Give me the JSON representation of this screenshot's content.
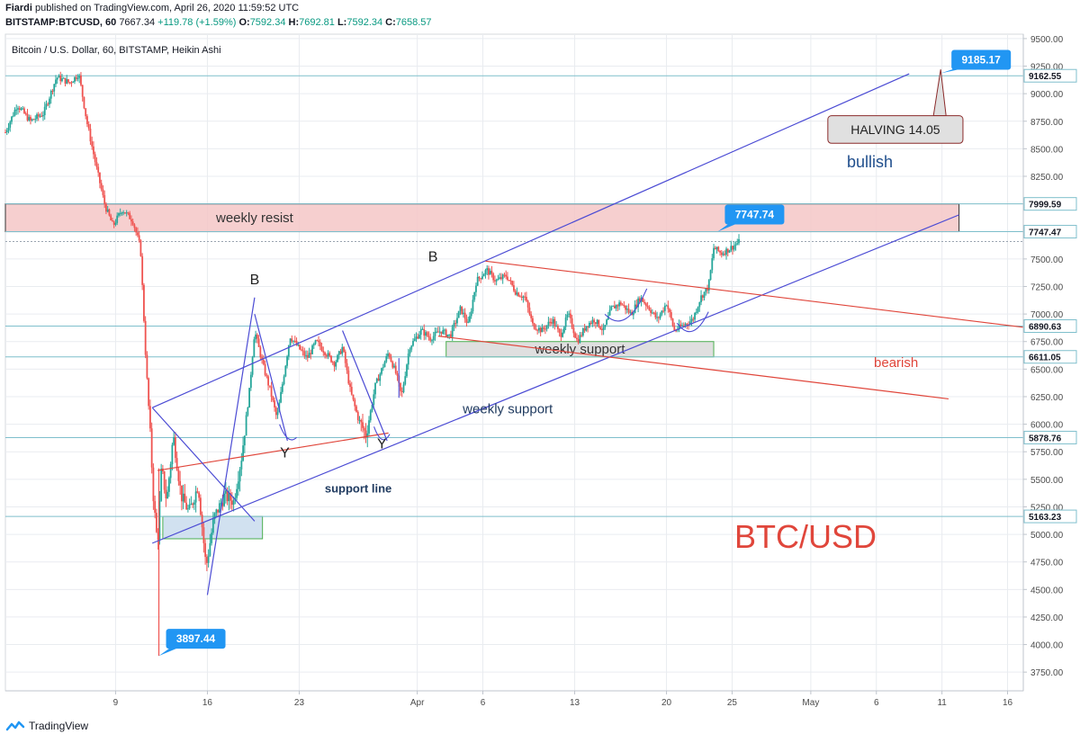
{
  "header": {
    "author": "Fiardi",
    "published": "published on TradingView.com, April 26, 2020 11:59:52 UTC",
    "symbol": "BITSTAMP:BTCUSD, 60",
    "last": "7667.34",
    "change": "+119.78 (+1.59%)",
    "o_label": "O:",
    "o": "7592.34",
    "h_label": "H:",
    "h": "7692.81",
    "l_label": "L:",
    "l": "7592.34",
    "c_label": "C:",
    "c": "7658.57"
  },
  "footer": {
    "brand": "TradingView",
    "logo_icon": "tradingview-logo-icon"
  },
  "chart_data": {
    "type": "candlestick",
    "subtitle": "Bitcoin / U.S. Dollar, 60, BITSTAMP, Heikin Ashi",
    "y_ticks": [
      3750,
      4000,
      4250,
      4500,
      4750,
      5000,
      5250,
      5500,
      5750,
      6000,
      6250,
      6500,
      6750,
      7000,
      7250,
      7500,
      7750,
      8000,
      8250,
      8500,
      8750,
      9000,
      9250,
      9500
    ],
    "y_tick_labels": [
      "3750.00",
      "4000.00",
      "4250.00",
      "4500.00",
      "4750.00",
      "5000.00",
      "5250.00",
      "5500.00",
      "5750.00",
      "6000.00",
      "6250.00",
      "6500.00",
      "6750.00",
      "7000.00",
      "7250.00",
      "7500.00",
      "7750.00",
      "8000.00",
      "8250.00",
      "8500.00",
      "8750.00",
      "9000.00",
      "9250.00",
      "9500.00"
    ],
    "ylim": [
      3580,
      9540
    ],
    "x_ticks": [
      {
        "label": "9",
        "day": 9
      },
      {
        "label": "16",
        "day": 16
      },
      {
        "label": "23",
        "day": 23
      },
      {
        "label": "Apr",
        "day": 32
      },
      {
        "label": "6",
        "day": 37
      },
      {
        "label": "13",
        "day": 44
      },
      {
        "label": "20",
        "day": 51
      },
      {
        "label": "25",
        "day": 56
      },
      {
        "label": "May",
        "day": 62
      },
      {
        "label": "6",
        "day": 67
      },
      {
        "label": "11",
        "day": 72
      },
      {
        "label": "16",
        "day": 77
      }
    ],
    "xlim": [
      0.6,
      78.2
    ],
    "price_levels": [
      {
        "label": "9162.55",
        "value": 9162.55
      },
      {
        "label": "7999.59",
        "value": 7999.59
      },
      {
        "label": "7747.47",
        "value": 7747.47
      },
      {
        "label": "6890.63",
        "value": 6890.63
      },
      {
        "label": "6611.05",
        "value": 6611.05
      },
      {
        "label": "5878.76",
        "value": 5878.76
      },
      {
        "label": "5163.23",
        "value": 5163.23
      }
    ],
    "current_price": 7658.57,
    "price_path": [
      [
        0.6,
        8650
      ],
      [
        1.5,
        8900
      ],
      [
        2.5,
        8750
      ],
      [
        3.5,
        8820
      ],
      [
        4.5,
        9150
      ],
      [
        5.5,
        9100
      ],
      [
        6.2,
        9180
      ],
      [
        6.8,
        8750
      ],
      [
        7.5,
        8350
      ],
      [
        8.2,
        7980
      ],
      [
        8.8,
        7800
      ],
      [
        9.5,
        7950
      ],
      [
        10.3,
        7850
      ],
      [
        10.9,
        7600
      ],
      [
        11.3,
        6600
      ],
      [
        11.6,
        6000
      ],
      [
        11.9,
        5300
      ],
      [
        12.2,
        4900
      ],
      [
        12.5,
        5600
      ],
      [
        12.9,
        5300
      ],
      [
        13.4,
        5900
      ],
      [
        14,
        5350
      ],
      [
        14.6,
        5200
      ],
      [
        15.3,
        5450
      ],
      [
        15.9,
        4700
      ],
      [
        16.5,
        5150
      ],
      [
        17.3,
        5350
      ],
      [
        18,
        5300
      ],
      [
        18.6,
        5700
      ],
      [
        19.2,
        6300
      ],
      [
        19.6,
        6850
      ],
      [
        20.2,
        6550
      ],
      [
        20.8,
        6300
      ],
      [
        21.3,
        6050
      ],
      [
        21.7,
        6350
      ],
      [
        22.3,
        6800
      ],
      [
        22.9,
        6700
      ],
      [
        23.6,
        6600
      ],
      [
        24.3,
        6750
      ],
      [
        25,
        6650
      ],
      [
        25.7,
        6550
      ],
      [
        26.3,
        6700
      ],
      [
        26.9,
        6300
      ],
      [
        27.5,
        6050
      ],
      [
        28.1,
        5900
      ],
      [
        28.8,
        6350
      ],
      [
        29.3,
        6500
      ],
      [
        29.8,
        6650
      ],
      [
        30.4,
        6450
      ],
      [
        30.8,
        6250
      ],
      [
        31.4,
        6700
      ],
      [
        32.3,
        6850
      ],
      [
        33,
        6780
      ],
      [
        33.8,
        6850
      ],
      [
        34.5,
        6800
      ],
      [
        35.3,
        7050
      ],
      [
        35.9,
        6900
      ],
      [
        36.5,
        7300
      ],
      [
        37.3,
        7400
      ],
      [
        38,
        7300
      ],
      [
        38.8,
        7350
      ],
      [
        39.5,
        7200
      ],
      [
        40.2,
        7150
      ],
      [
        40.8,
        6900
      ],
      [
        41.5,
        6850
      ],
      [
        42.3,
        6950
      ],
      [
        42.9,
        6800
      ],
      [
        43.5,
        7000
      ],
      [
        44.2,
        6750
      ],
      [
        44.9,
        6900
      ],
      [
        45.5,
        6950
      ],
      [
        46.2,
        6850
      ],
      [
        46.8,
        7050
      ],
      [
        47.5,
        7100
      ],
      [
        48.3,
        7000
      ],
      [
        49,
        7150
      ],
      [
        49.7,
        7050
      ],
      [
        50.3,
        6950
      ],
      [
        51,
        7100
      ],
      [
        51.6,
        6850
      ],
      [
        52.3,
        6900
      ],
      [
        53,
        6950
      ],
      [
        53.6,
        7150
      ],
      [
        54.2,
        7250
      ],
      [
        54.6,
        7600
      ],
      [
        55.2,
        7550
      ],
      [
        55.9,
        7600
      ],
      [
        56.6,
        7660
      ]
    ],
    "extreme_labels": [
      {
        "text": "7747.74",
        "day": 54.9,
        "price": 7747.74
      },
      {
        "text": "3897.44",
        "day": 12.3,
        "price": 3897.44
      },
      {
        "text": "9185.17",
        "day": 71.9,
        "price": 9185.17
      }
    ],
    "zones": [
      {
        "name": "weekly-resist-zone",
        "label": "weekly resist",
        "d1": 0.6,
        "d2": 73.3,
        "p1": 7747.47,
        "p2": 7999.59,
        "fill": "#f4c7c7",
        "stroke": "#333333"
      },
      {
        "name": "weekly-support-box",
        "label": "weekly support",
        "d1": 34.2,
        "d2": 54.6,
        "p1": 6611.05,
        "p2": 6750,
        "fill": "#d9d9d9",
        "stroke": "#4caf50"
      },
      {
        "name": "support-box",
        "label": "",
        "d1": 12.6,
        "d2": 20.2,
        "p1": 4960,
        "p2": 5163.23,
        "fill": "#c9dced",
        "stroke": "#4caf50"
      }
    ],
    "channel_lines": [
      {
        "name": "channel-upper-line",
        "d1": 11.8,
        "p1": 6150,
        "d2": 69.5,
        "p2": 9180,
        "color": "#4b4bd4"
      },
      {
        "name": "channel-lower-line",
        "d1": 11.8,
        "p1": 4920,
        "d2": 73.3,
        "p2": 7900,
        "color": "#4b4bd4"
      },
      {
        "name": "bearish-upper-line",
        "d1": 37.2,
        "p1": 7480,
        "d2": 78.2,
        "p2": 6880,
        "color": "#e0463b"
      },
      {
        "name": "bearish-lower-line",
        "d1": 33.6,
        "p1": 6800,
        "d2": 72.5,
        "p2": 6230,
        "color": "#e0463b"
      },
      {
        "name": "support-line-red",
        "d1": 12.2,
        "p1": 5580,
        "d2": 29.8,
        "p2": 5920,
        "color": "#e0463b"
      },
      {
        "name": "triangle-down-line",
        "d1": 11.8,
        "p1": 6150,
        "d2": 19.6,
        "p2": 5120,
        "color": "#4b4bd4"
      },
      {
        "name": "triangle-up-line",
        "d1": 16,
        "p1": 4450,
        "d2": 19.6,
        "p2": 7150,
        "color": "#4b4bd4"
      },
      {
        "name": "wave-down-line-1",
        "d1": 19.6,
        "p1": 7000,
        "d2": 22.1,
        "p2": 5850,
        "color": "#4b4bd4"
      },
      {
        "name": "wave-down-line-2",
        "d1": 26.3,
        "p1": 6850,
        "d2": 29.7,
        "p2": 5850,
        "color": "#4b4bd4"
      }
    ],
    "wave_labels": [
      {
        "text": "B",
        "day": 19.6,
        "price": 7270
      },
      {
        "text": "Y",
        "day": 21.9,
        "price": 5700
      },
      {
        "text": "B",
        "day": 33.2,
        "price": 7480
      },
      {
        "text": "Y",
        "day": 29.3,
        "price": 5780
      }
    ],
    "annotations": [
      {
        "text": "weekly support",
        "day": 38.9,
        "price": 6100,
        "color": "#1f3a5f"
      },
      {
        "text": "support line",
        "day": 27.5,
        "price": 5380,
        "color": "#1f3a5f"
      },
      {
        "text": "bullish",
        "day": 66.5,
        "price": 8330,
        "color": "#1f4e8c"
      },
      {
        "text": "bearish",
        "day": 68.5,
        "price": 6520,
        "color": "#e0463b"
      },
      {
        "text": "BTC/USD",
        "day": 61.6,
        "price": 4880,
        "color": "#e0463b"
      }
    ],
    "callout": {
      "text": "HALVING 14.05",
      "pointer_day": 71.9,
      "pointer_price": 9220,
      "box_d1": 63.3,
      "box_d2": 73.6,
      "box_p1": 8550,
      "box_p2": 8800
    },
    "colors": {
      "up": "#26a69a",
      "down": "#ef5350",
      "label_bg": "#2196f3",
      "level_line": "#7fbfcc",
      "grid": "#e9ecf0",
      "channel": "#4b4bd4",
      "bearish": "#e0463b"
    }
  }
}
